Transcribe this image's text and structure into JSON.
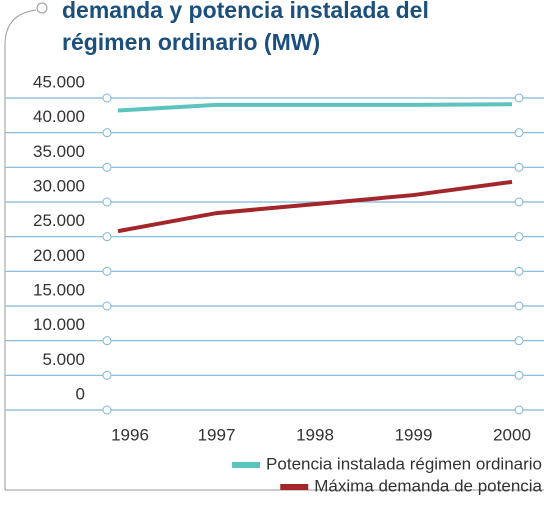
{
  "chart_data": {
    "type": "line",
    "title_lines": [
      "demanda y potencia instalada del",
      "régimen ordinario (MW)"
    ],
    "categories": [
      "1996",
      "1997",
      "1998",
      "1999",
      "2000"
    ],
    "series": [
      {
        "name": "Potencia instalada régimen ordinario",
        "color": "#5cc3bd",
        "values": [
          43200,
          44000,
          44000,
          44000,
          44100
        ]
      },
      {
        "name": "Máxima demanda de potencia",
        "color": "#a3262a",
        "values": [
          25800,
          28400,
          29700,
          31000,
          32900
        ]
      }
    ],
    "ylim": [
      0,
      45000
    ],
    "yticks": [
      {
        "value": 0,
        "label": "0"
      },
      {
        "value": 5000,
        "label": "5.000"
      },
      {
        "value": 10000,
        "label": "10.000"
      },
      {
        "value": 15000,
        "label": "15.000"
      },
      {
        "value": 20000,
        "label": "20.000"
      },
      {
        "value": 25000,
        "label": "25.000"
      },
      {
        "value": 30000,
        "label": "30.000"
      },
      {
        "value": 35000,
        "label": "35.000"
      },
      {
        "value": 40000,
        "label": "40.000"
      },
      {
        "value": 45000,
        "label": "45.000"
      }
    ],
    "grid": true,
    "legend": "bottom-right"
  }
}
